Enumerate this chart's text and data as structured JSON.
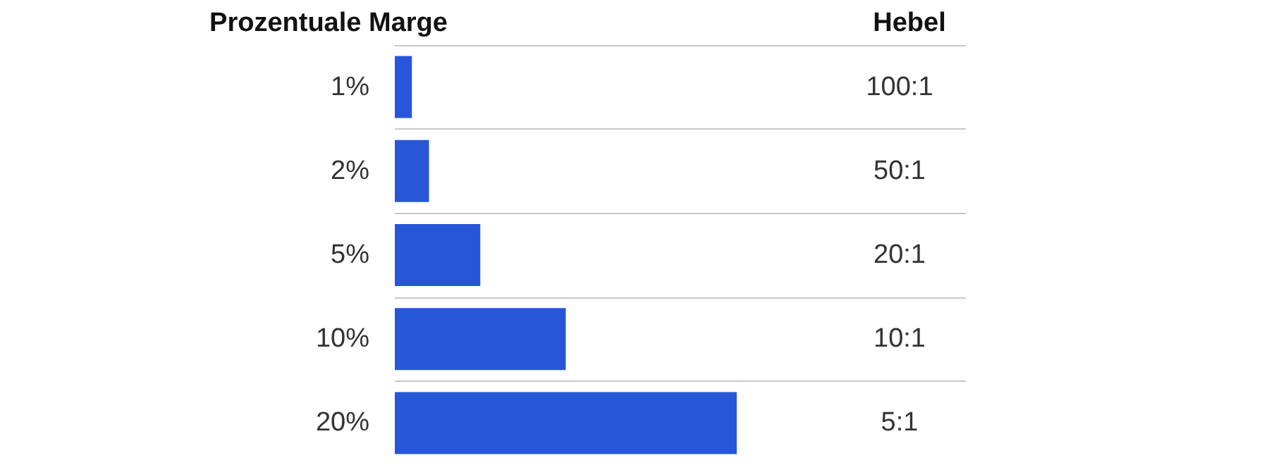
{
  "chart_data": {
    "type": "bar",
    "orientation": "horizontal",
    "xlabel": "Prozentuale Marge",
    "ylabel": "Hebel",
    "categories": [
      "100:1",
      "50:1",
      "20:1",
      "10:1",
      "5:1"
    ],
    "values": [
      1,
      2,
      5,
      10,
      20
    ],
    "value_labels": [
      "1%",
      "2%",
      "5%",
      "10%",
      "20%"
    ],
    "color": "#2756d8",
    "grid": "y"
  }
}
